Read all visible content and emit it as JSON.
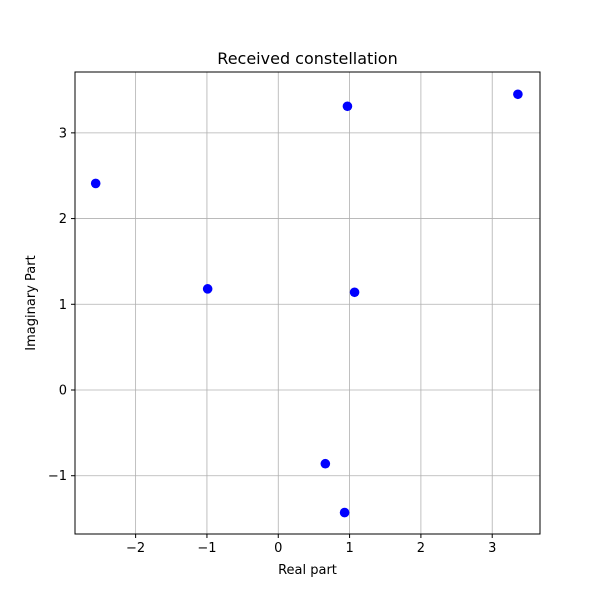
{
  "chart_data": {
    "type": "scatter",
    "title": "Received constellation",
    "xlabel": "Real part",
    "ylabel": "Imaginary Part",
    "xlim": [
      -2.85,
      3.67
    ],
    "ylim": [
      -1.68,
      3.71
    ],
    "xticks": [
      -2,
      -1,
      0,
      1,
      2,
      3
    ],
    "yticks": [
      -1,
      0,
      1,
      2,
      3
    ],
    "xtick_labels": [
      "−2",
      "−1",
      "0",
      "1",
      "2",
      "3"
    ],
    "ytick_labels": [
      "−1",
      "0",
      "1",
      "2",
      "3"
    ],
    "grid": true,
    "marker_color": "#0000ff",
    "points": [
      {
        "x": -2.56,
        "y": 2.41
      },
      {
        "x": -0.99,
        "y": 1.18
      },
      {
        "x": 0.97,
        "y": 3.31
      },
      {
        "x": 3.36,
        "y": 3.45
      },
      {
        "x": 1.07,
        "y": 1.14
      },
      {
        "x": 0.66,
        "y": -0.86
      },
      {
        "x": 0.93,
        "y": -1.43
      }
    ]
  }
}
